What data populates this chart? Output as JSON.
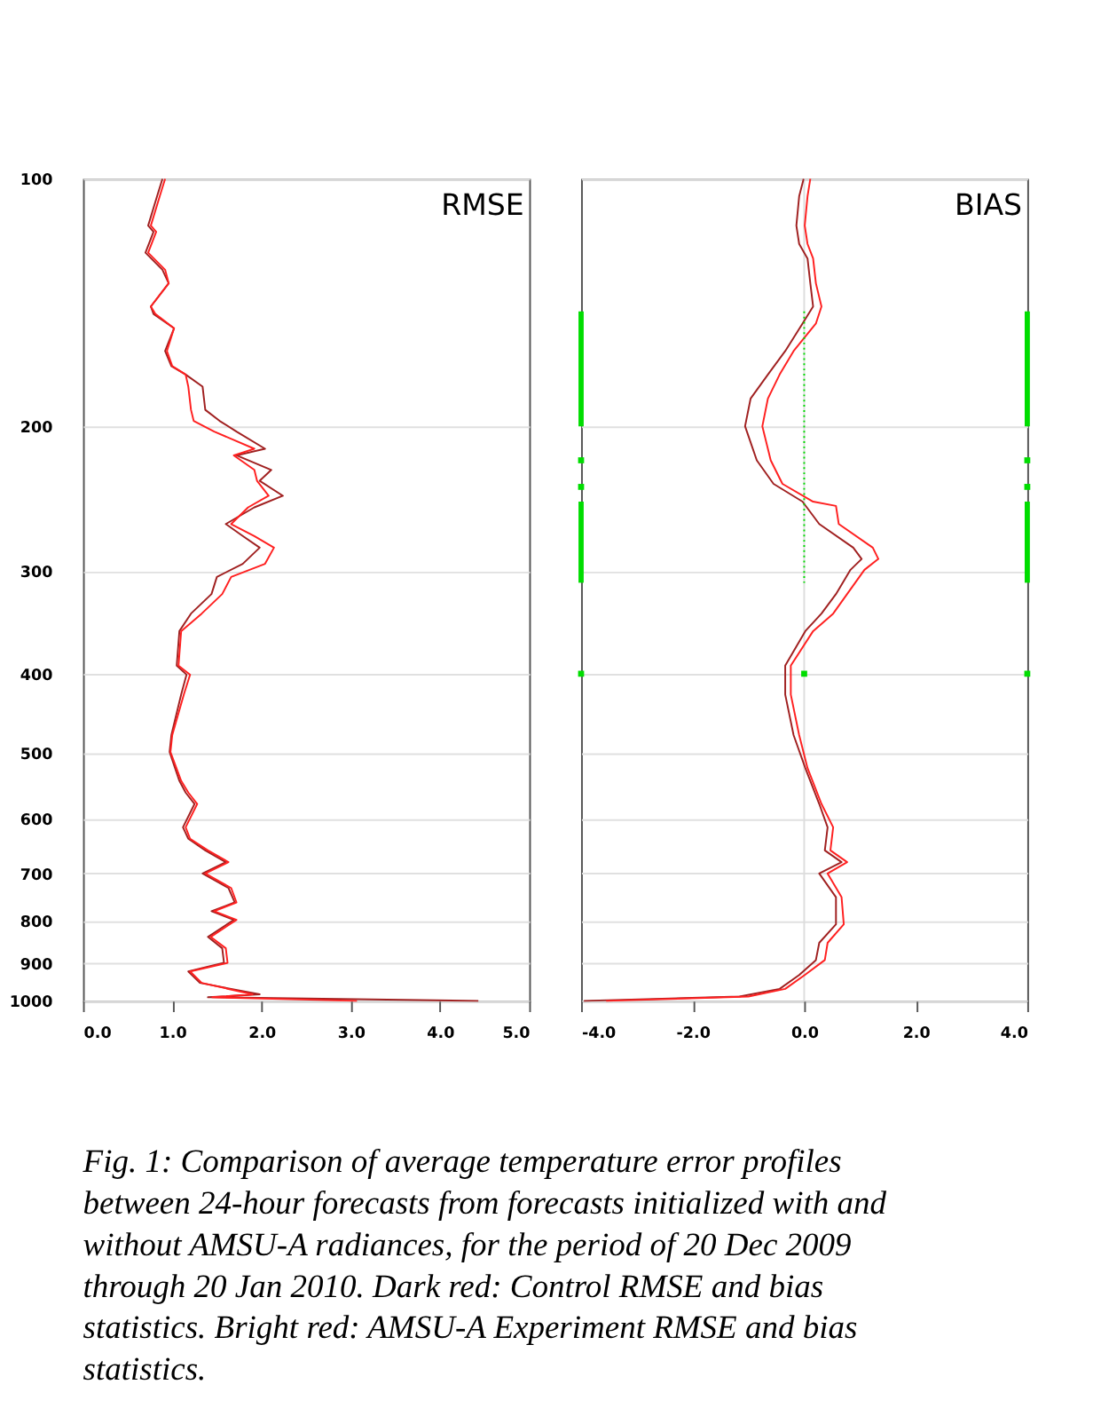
{
  "chart_data": [
    {
      "type": "line",
      "title": "RMSE",
      "xlim": [
        0,
        5
      ],
      "xticks": [
        {
          "value": 0,
          "label": "0.0"
        },
        {
          "value": 1,
          "label": "1.0"
        },
        {
          "value": 2,
          "label": "2.0"
        },
        {
          "value": 3,
          "label": "3.0"
        },
        {
          "value": 4,
          "label": "4.0"
        },
        {
          "value": 5,
          "label": "5.0"
        }
      ],
      "ylim": [
        1000,
        100
      ],
      "yticks": [
        100,
        200,
        300,
        400,
        500,
        600,
        700,
        800,
        900,
        1000
      ],
      "log": "y",
      "grid": "y",
      "marker": "none",
      "line_style": "solid",
      "annotations": [
        "Fig. 1: Comparison of average temperature error profiles between 24-hour forecasts from forecasts initialized with and without AMSU-A radiances, for the period of 20 Dec 2009 through 20 Jan 2010.  Dark red:  Control RMSE and bias statistics.  Bright red:  AMSU-A Experiment RMSE and bias statistics."
      ],
      "series": [
        {
          "color": "#a02020",
          "x": [
            0.89,
            0.83,
            0.73,
            0.79,
            0.7,
            0.89,
            0.96,
            0.76,
            0.79,
            1.02,
            0.92,
            0.99,
            1.15,
            1.34,
            1.37,
            1.53,
            1.72,
            2.04,
            1.72,
            2.11,
            1.98,
            2.24,
            1.92,
            1.6,
            1.79,
            1.98,
            1.79,
            1.5,
            1.44,
            1.21,
            1.08,
            1.05,
            1.16,
            1.1,
            0.99,
            0.97,
            1.08,
            1.15,
            1.25,
            1.12,
            1.18,
            1.37,
            1.6,
            1.34,
            1.63,
            1.7,
            1.44,
            1.69,
            1.4,
            1.56,
            1.58,
            1.18,
            1.31,
            1.98,
            1.4,
            4.43
          ],
          "values": [
            100,
            105,
            114,
            116,
            123,
            129,
            134,
            143,
            146,
            152,
            162,
            169,
            173,
            179,
            191,
            197,
            203,
            213,
            217,
            226,
            233,
            243,
            251,
            263,
            272,
            281,
            294,
            305,
            320,
            338,
            355,
            391,
            401,
            424,
            475,
            498,
            540,
            558,
            576,
            615,
            635,
            656,
            678,
            700,
            729,
            759,
            778,
            797,
            836,
            863,
            899,
            921,
            951,
            982,
            990,
            1000
          ]
        },
        {
          "color": "#ff2020",
          "x": [
            0.92,
            0.86,
            0.76,
            0.82,
            0.73,
            0.92,
            0.96,
            0.76,
            0.81,
            1.02,
            0.94,
            1.0,
            1.15,
            1.18,
            1.21,
            1.24,
            1.47,
            1.92,
            1.69,
            1.92,
            1.95,
            2.08,
            1.85,
            1.66,
            1.92,
            2.14,
            2.04,
            1.66,
            1.56,
            1.33,
            1.1,
            1.07,
            1.2,
            1.13,
            1.0,
            0.98,
            1.1,
            1.18,
            1.28,
            1.15,
            1.2,
            1.4,
            1.63,
            1.37,
            1.66,
            1.72,
            1.47,
            1.72,
            1.43,
            1.6,
            1.62,
            1.2,
            1.33,
            1.9,
            1.45,
            3.07
          ],
          "values": [
            100,
            105,
            114,
            116,
            123,
            129,
            134,
            143,
            146,
            152,
            162,
            169,
            173,
            179,
            191,
            197,
            203,
            213,
            217,
            226,
            233,
            243,
            251,
            263,
            272,
            281,
            294,
            305,
            320,
            338,
            355,
            391,
            401,
            424,
            475,
            498,
            540,
            558,
            576,
            615,
            635,
            656,
            678,
            700,
            729,
            759,
            778,
            797,
            836,
            863,
            899,
            921,
            951,
            982,
            990,
            1000
          ]
        }
      ]
    },
    {
      "type": "line",
      "title": "BIAS",
      "xlim": [
        -4,
        4
      ],
      "xticks": [
        {
          "value": -4,
          "label": "-4.0"
        },
        {
          "value": -2,
          "label": "-2.0"
        },
        {
          "value": 0,
          "label": "0.0"
        },
        {
          "value": 2,
          "label": "2.0"
        },
        {
          "value": 4,
          "label": "4.0"
        }
      ],
      "ylim": [
        1000,
        100
      ],
      "yticks": [
        100,
        200,
        300,
        400,
        500,
        600,
        700,
        800,
        900,
        1000
      ],
      "tick_labels": "x",
      "log": "y",
      "grid": "y",
      "marker": "none",
      "line_style": "solid",
      "ref_lines": [
        {
          "axis": "x",
          "value": 0,
          "color": "#dddddd"
        }
      ],
      "series": [
        {
          "color": "#a02020",
          "x": [
            -0.01,
            -0.09,
            -0.14,
            -0.09,
            0.06,
            0.11,
            0.16,
            -0.03,
            -0.34,
            -0.65,
            -0.96,
            -1.06,
            -0.85,
            -0.55,
            -0.03,
            0.27,
            0.88,
            1.03,
            0.83,
            0.57,
            0.31,
            0.02,
            -0.34,
            -0.34,
            -0.19,
            0.02,
            0.27,
            0.42,
            0.37,
            0.67,
            0.27,
            0.57,
            0.57,
            0.27,
            0.21,
            -0.09,
            -0.44,
            -1.16,
            -3.95
          ],
          "values": [
            100,
            105,
            114,
            120,
            125,
            134,
            143,
            150,
            162,
            173,
            185,
            200,
            220,
            235,
            247,
            263,
            281,
            290,
            299,
            320,
            338,
            355,
            391,
            424,
            475,
            521,
            576,
            615,
            656,
            678,
            700,
            748,
            807,
            850,
            892,
            930,
            967,
            988,
            1000
          ]
        },
        {
          "color": "#ff2020",
          "x": [
            0.11,
            0.06,
            0.01,
            0.06,
            0.16,
            0.21,
            0.31,
            0.21,
            -0.19,
            -0.44,
            -0.65,
            -0.75,
            -0.6,
            -0.39,
            0.16,
            0.57,
            0.62,
            1.23,
            1.33,
            1.08,
            0.77,
            0.52,
            0.16,
            -0.24,
            -0.24,
            -0.09,
            0.06,
            0.31,
            0.52,
            0.47,
            0.77,
            0.42,
            0.67,
            0.71,
            0.42,
            0.37,
            0.01,
            -0.34,
            -1.0,
            -3.55
          ],
          "values": [
            100,
            105,
            114,
            120,
            125,
            134,
            143,
            150,
            162,
            173,
            185,
            200,
            220,
            235,
            247,
            250,
            263,
            281,
            290,
            299,
            320,
            338,
            355,
            391,
            424,
            475,
            521,
            576,
            615,
            656,
            678,
            700,
            748,
            807,
            850,
            892,
            930,
            967,
            988,
            1000
          ]
        },
        {
          "color": "#00dd00",
          "x": [
            -4,
            -4
          ],
          "values": [
            145,
            200
          ]
        },
        {
          "color": "#00dd00",
          "x": [
            -4,
            -4
          ],
          "values": [
            247,
            310
          ]
        },
        {
          "color": "#00dd00",
          "x": [
            4,
            4
          ],
          "values": [
            145,
            200
          ]
        },
        {
          "color": "#00dd00",
          "x": [
            4,
            4
          ],
          "values": [
            247,
            310
          ]
        },
        {
          "color": "#00dd00",
          "line_style": "dotted",
          "x": [
            0,
            0
          ],
          "values": [
            145,
            310
          ]
        },
        {
          "color": "#00dd00",
          "type": "scatter",
          "marker": "square",
          "x": [
            -4,
            -4,
            -4,
            4,
            4,
            4,
            0
          ],
          "values": [
            220,
            237,
            400,
            220,
            237,
            400,
            400
          ]
        }
      ]
    }
  ]
}
